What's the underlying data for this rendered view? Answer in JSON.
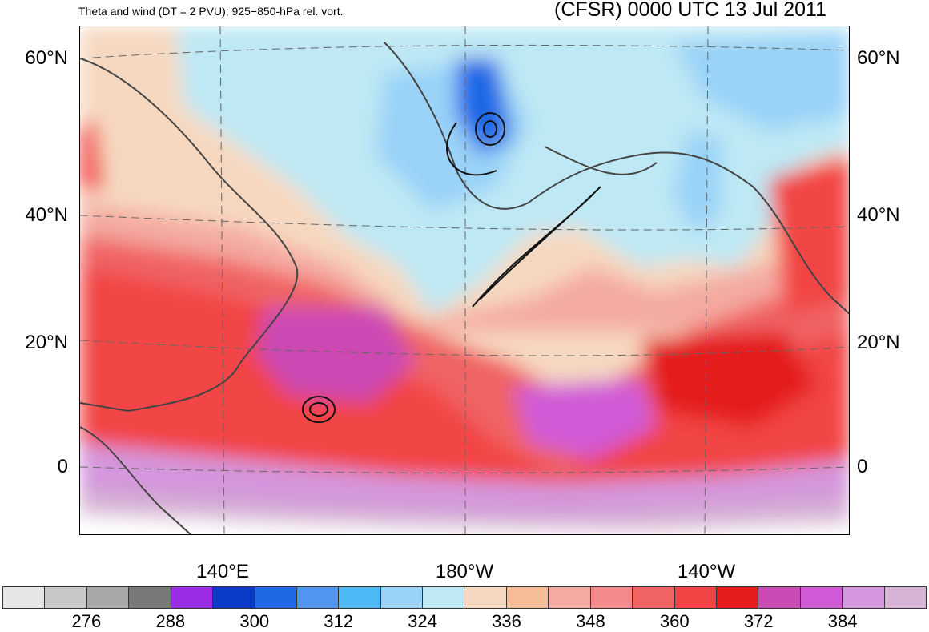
{
  "title_left": "Theta and wind (DT = 2 PVU); 925−850-hPa rel. vort.",
  "title_right": "(CFSR) 0000 UTC 13 Jul 2011",
  "lat_labels": [
    "60°N",
    "40°N",
    "20°N",
    "0"
  ],
  "lon_labels": [
    "140°E",
    "180°W",
    "140°W"
  ],
  "colorbar": {
    "colors": [
      "#e6e6e6",
      "#c8c8c8",
      "#a8a8a8",
      "#787878",
      "#9a2ce6",
      "#0a3cc8",
      "#1f68e6",
      "#5096f0",
      "#4cb8f4",
      "#9ad2f8",
      "#bde8f4",
      "#f6d8c0",
      "#f6bc98",
      "#f4aaa0",
      "#f48a8a",
      "#f06464",
      "#f24444",
      "#e41c1c",
      "#cc4ab4",
      "#d05ad6",
      "#d496dc",
      "#d6b2d4"
    ],
    "labels": [
      "276",
      "288",
      "300",
      "312",
      "324",
      "336",
      "348",
      "360",
      "372",
      "384"
    ]
  },
  "colors": {
    "warm": "#f04a4a",
    "hot": "#e41c1c",
    "cool": "#bde8f4",
    "cold": "#5096f0",
    "peach": "#f6d8c0",
    "violet": "#cc4ab4"
  }
}
